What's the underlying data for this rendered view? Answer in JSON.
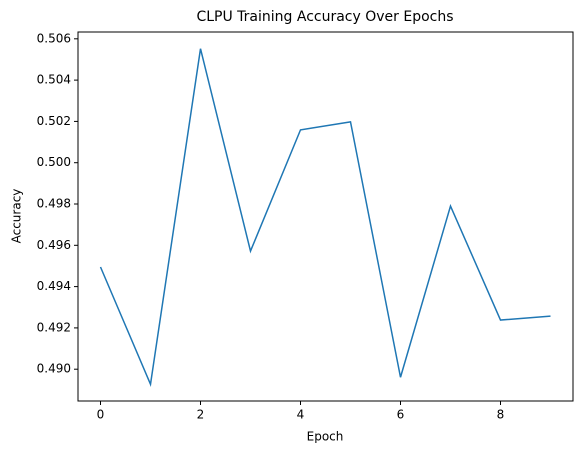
{
  "chart_data": {
    "type": "line",
    "title": "CLPU Training Accuracy Over Epochs",
    "x_label": "Epoch",
    "y_label": "Accuracy",
    "x": [
      0,
      1,
      2,
      3,
      4,
      5,
      6,
      7,
      8,
      9
    ],
    "series": [
      {
        "name": "Accuracy",
        "color": "#1f77b4",
        "values": [
          0.49495,
          0.48927,
          0.50552,
          0.49572,
          0.50159,
          0.50198,
          0.48961,
          0.4979,
          0.49238,
          0.49257
        ]
      }
    ],
    "xlim": [
      -0.45,
      9.45
    ],
    "xticks": [
      0,
      2,
      4,
      6,
      8
    ],
    "ylim": [
      0.48846,
      0.50633
    ],
    "yticks": [
      {
        "value": 0.49,
        "label": "0.490"
      },
      {
        "value": 0.492,
        "label": "0.492"
      },
      {
        "value": 0.494,
        "label": "0.494"
      },
      {
        "value": 0.496,
        "label": "0.496"
      },
      {
        "value": 0.498,
        "label": "0.498"
      },
      {
        "value": 0.5,
        "label": "0.500"
      },
      {
        "value": 0.502,
        "label": "0.502"
      },
      {
        "value": 0.504,
        "label": "0.504"
      },
      {
        "value": 0.506,
        "label": "0.506"
      }
    ],
    "grid": false
  }
}
